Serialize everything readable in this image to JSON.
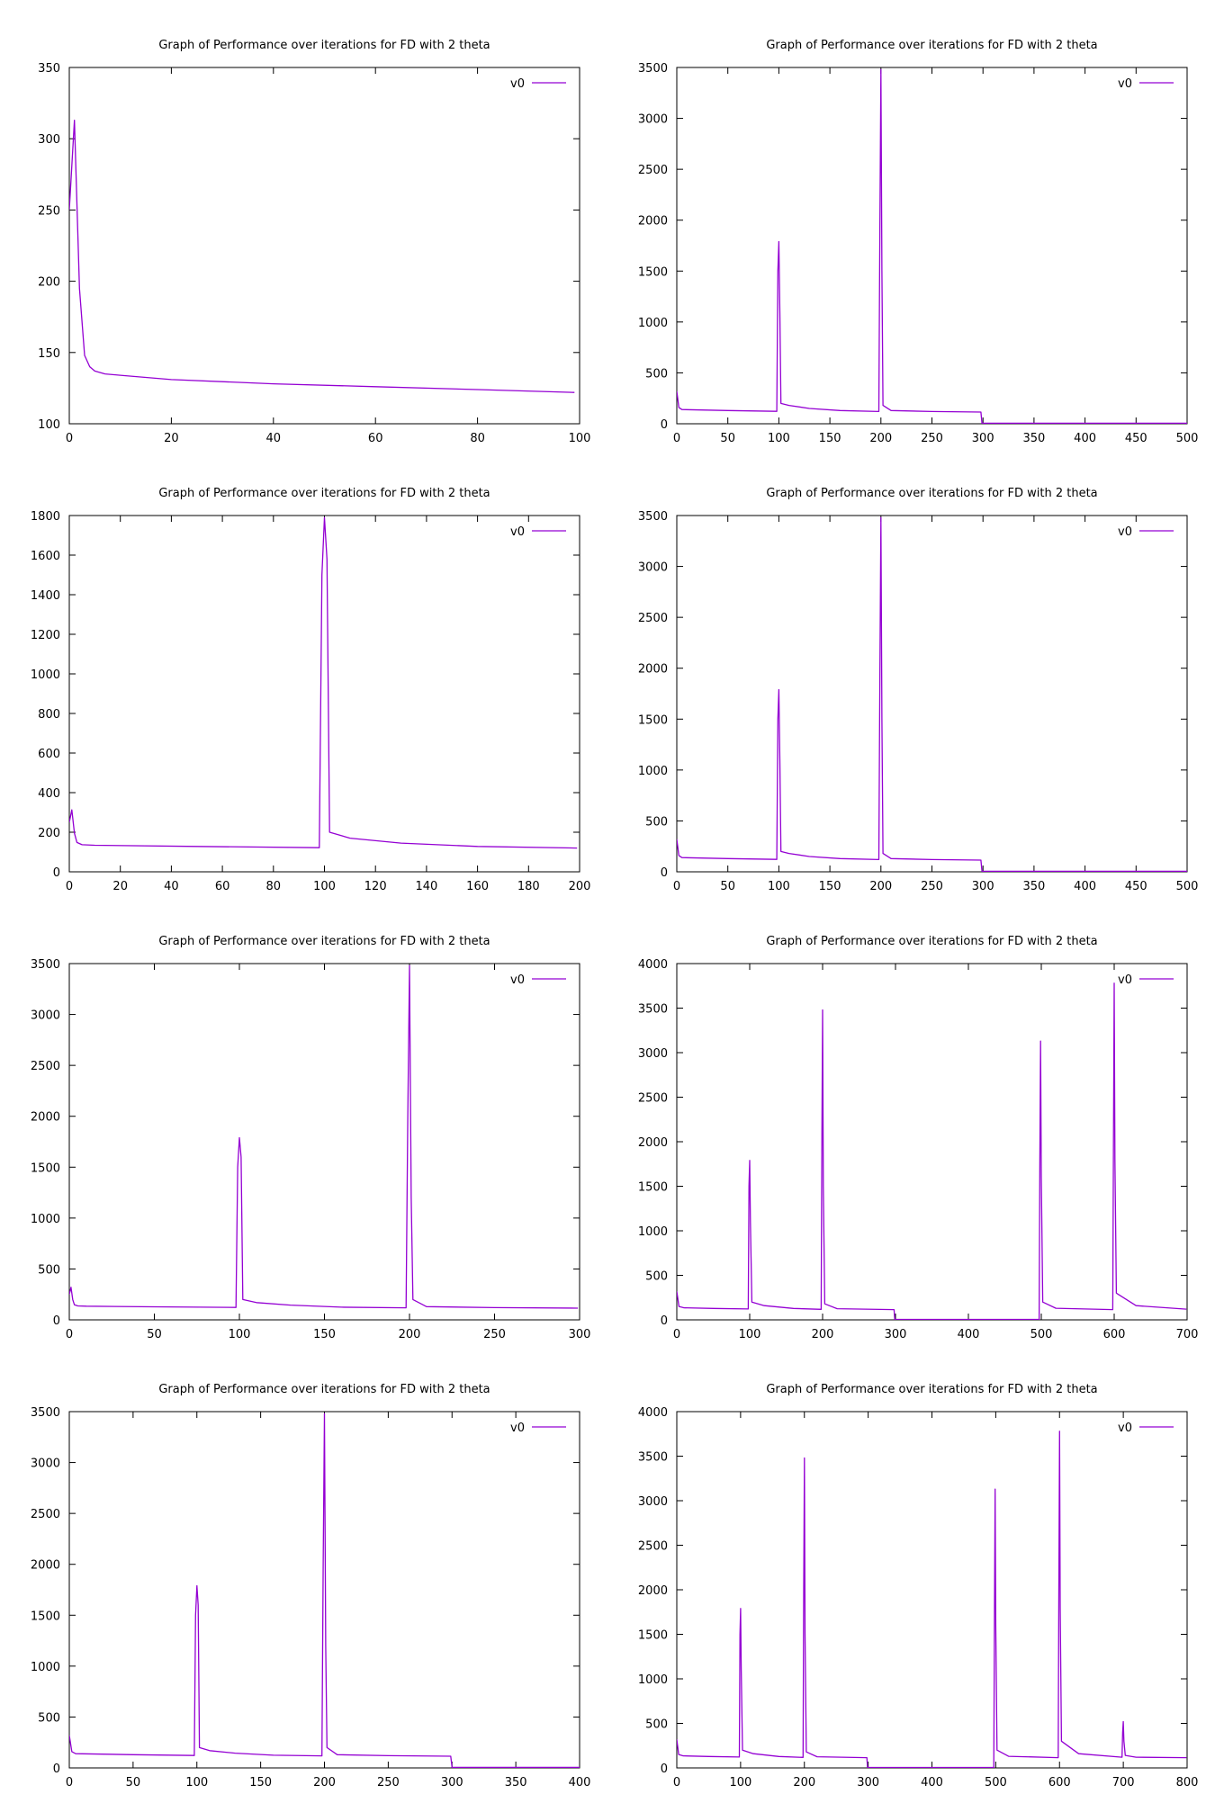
{
  "colors": {
    "series": "#9400d3",
    "axis": "#000000",
    "background": "#ffffff"
  },
  "chart_data": [
    {
      "type": "line",
      "title": "Graph of Performance over iterations for FD with 2 theta",
      "xlim": [
        0,
        100
      ],
      "ylim": [
        100,
        350
      ],
      "xticks": [
        0,
        20,
        40,
        60,
        80,
        100
      ],
      "yticks": [
        100,
        150,
        200,
        250,
        300,
        350
      ],
      "grid": false,
      "legend_position": "top-right",
      "series": [
        {
          "name": "v0",
          "color": "#9400d3",
          "points": [
            [
              0,
              250
            ],
            [
              1,
              313
            ],
            [
              2,
              195
            ],
            [
              3,
              148
            ],
            [
              4,
              140
            ],
            [
              5,
              137
            ],
            [
              7,
              135
            ],
            [
              10,
              134
            ],
            [
              20,
              131
            ],
            [
              40,
              128
            ],
            [
              60,
              126
            ],
            [
              80,
              124
            ],
            [
              99,
              122
            ]
          ]
        }
      ]
    },
    {
      "type": "line",
      "title": "Graph of Performance over iterations for FD with 2 theta",
      "xlim": [
        0,
        500
      ],
      "ylim": [
        0,
        3500
      ],
      "xticks": [
        0,
        50,
        100,
        150,
        200,
        250,
        300,
        350,
        400,
        450,
        500
      ],
      "yticks": [
        0,
        500,
        1000,
        1500,
        2000,
        2500,
        3000,
        3500
      ],
      "grid": false,
      "legend_position": "top-right",
      "series": [
        {
          "name": "v0",
          "color": "#9400d3",
          "points": [
            [
              0,
              320
            ],
            [
              2,
              160
            ],
            [
              5,
              140
            ],
            [
              50,
              130
            ],
            [
              98,
              122
            ],
            [
              99,
              1500
            ],
            [
              100,
              1790
            ],
            [
              101,
              1100
            ],
            [
              102,
              200
            ],
            [
              110,
              180
            ],
            [
              130,
              150
            ],
            [
              160,
              130
            ],
            [
              198,
              120
            ],
            [
              199,
              2000
            ],
            [
              200,
              3480
            ],
            [
              201,
              1500
            ],
            [
              202,
              180
            ],
            [
              210,
              130
            ],
            [
              250,
              120
            ],
            [
              298,
              115
            ],
            [
              299,
              5
            ],
            [
              500,
              5
            ]
          ]
        }
      ]
    },
    {
      "type": "line",
      "title": "Graph of Performance over iterations for FD with 2 theta",
      "xlim": [
        0,
        200
      ],
      "ylim": [
        0,
        1800
      ],
      "xticks": [
        0,
        20,
        40,
        60,
        80,
        100,
        120,
        140,
        160,
        180,
        200
      ],
      "yticks": [
        0,
        200,
        400,
        600,
        800,
        1000,
        1200,
        1400,
        1600,
        1800
      ],
      "grid": false,
      "legend_position": "top-right",
      "series": [
        {
          "name": "v0",
          "color": "#9400d3",
          "points": [
            [
              0,
              250
            ],
            [
              1,
              313
            ],
            [
              2,
              195
            ],
            [
              3,
              148
            ],
            [
              5,
              137
            ],
            [
              10,
              134
            ],
            [
              50,
              128
            ],
            [
              98,
              122
            ],
            [
              99,
              1500
            ],
            [
              100,
              1790
            ],
            [
              101,
              1580
            ],
            [
              102,
              200
            ],
            [
              110,
              170
            ],
            [
              130,
              145
            ],
            [
              160,
              128
            ],
            [
              199,
              120
            ]
          ]
        }
      ]
    },
    {
      "type": "line",
      "title": "Graph of Performance over iterations for FD with 2 theta",
      "xlim": [
        0,
        500
      ],
      "ylim": [
        0,
        3500
      ],
      "xticks": [
        0,
        50,
        100,
        150,
        200,
        250,
        300,
        350,
        400,
        450,
        500
      ],
      "yticks": [
        0,
        500,
        1000,
        1500,
        2000,
        2500,
        3000,
        3500
      ],
      "grid": false,
      "legend_position": "top-right",
      "series": [
        {
          "name": "v0",
          "color": "#9400d3",
          "points": [
            [
              0,
              320
            ],
            [
              2,
              160
            ],
            [
              5,
              140
            ],
            [
              50,
              130
            ],
            [
              98,
              122
            ],
            [
              99,
              1500
            ],
            [
              100,
              1790
            ],
            [
              101,
              1100
            ],
            [
              102,
              200
            ],
            [
              110,
              180
            ],
            [
              130,
              150
            ],
            [
              160,
              130
            ],
            [
              198,
              120
            ],
            [
              199,
              2000
            ],
            [
              200,
              3480
            ],
            [
              201,
              1500
            ],
            [
              202,
              180
            ],
            [
              210,
              130
            ],
            [
              250,
              120
            ],
            [
              298,
              115
            ],
            [
              299,
              5
            ],
            [
              500,
              5
            ]
          ]
        }
      ]
    },
    {
      "type": "line",
      "title": "Graph of Performance over iterations for FD with 2 theta",
      "xlim": [
        0,
        300
      ],
      "ylim": [
        0,
        3500
      ],
      "xticks": [
        0,
        50,
        100,
        150,
        200,
        250,
        300
      ],
      "yticks": [
        0,
        500,
        1000,
        1500,
        2000,
        2500,
        3000,
        3500
      ],
      "grid": false,
      "legend_position": "top-right",
      "series": [
        {
          "name": "v0",
          "color": "#9400d3",
          "points": [
            [
              0,
              250
            ],
            [
              1,
              320
            ],
            [
              2,
              200
            ],
            [
              3,
              148
            ],
            [
              5,
              137
            ],
            [
              10,
              134
            ],
            [
              50,
              128
            ],
            [
              98,
              122
            ],
            [
              99,
              1500
            ],
            [
              100,
              1790
            ],
            [
              101,
              1600
            ],
            [
              102,
              200
            ],
            [
              110,
              170
            ],
            [
              130,
              145
            ],
            [
              160,
              125
            ],
            [
              198,
              118
            ],
            [
              199,
              2000
            ],
            [
              200,
              3480
            ],
            [
              201,
              1200
            ],
            [
              202,
              200
            ],
            [
              210,
              130
            ],
            [
              250,
              120
            ],
            [
              299,
              115
            ]
          ]
        }
      ]
    },
    {
      "type": "line",
      "title": "Graph of Performance over iterations for FD with 2 theta",
      "xlim": [
        0,
        700
      ],
      "ylim": [
        0,
        4000
      ],
      "xticks": [
        0,
        100,
        200,
        300,
        400,
        500,
        600,
        700
      ],
      "yticks": [
        0,
        500,
        1000,
        1500,
        2000,
        2500,
        3000,
        3500,
        4000
      ],
      "grid": false,
      "legend_position": "top-right",
      "series": [
        {
          "name": "v0",
          "color": "#9400d3",
          "points": [
            [
              0,
              320
            ],
            [
              3,
              150
            ],
            [
              10,
              135
            ],
            [
              50,
              128
            ],
            [
              98,
              122
            ],
            [
              99,
              1500
            ],
            [
              100,
              1790
            ],
            [
              101,
              1100
            ],
            [
              103,
              200
            ],
            [
              120,
              160
            ],
            [
              160,
              128
            ],
            [
              198,
              118
            ],
            [
              199,
              2000
            ],
            [
              200,
              3480
            ],
            [
              201,
              1500
            ],
            [
              203,
              180
            ],
            [
              220,
              125
            ],
            [
              298,
              115
            ],
            [
              299,
              5
            ],
            [
              497,
              5
            ],
            [
              498,
              1800
            ],
            [
              499,
              3130
            ],
            [
              500,
              1600
            ],
            [
              502,
              200
            ],
            [
              520,
              130
            ],
            [
              598,
              115
            ],
            [
              599,
              2000
            ],
            [
              600,
              3780
            ],
            [
              601,
              1800
            ],
            [
              603,
              300
            ],
            [
              630,
              160
            ],
            [
              699,
              120
            ]
          ]
        }
      ]
    },
    {
      "type": "line",
      "title": "Graph of Performance over iterations for FD with 2 theta",
      "xlim": [
        0,
        400
      ],
      "ylim": [
        0,
        3500
      ],
      "xticks": [
        0,
        50,
        100,
        150,
        200,
        250,
        300,
        350,
        400
      ],
      "yticks": [
        0,
        500,
        1000,
        1500,
        2000,
        2500,
        3000,
        3500
      ],
      "grid": false,
      "legend_position": "top-right",
      "series": [
        {
          "name": "v0",
          "color": "#9400d3",
          "points": [
            [
              0,
              320
            ],
            [
              2,
              160
            ],
            [
              5,
              140
            ],
            [
              50,
              130
            ],
            [
              98,
              122
            ],
            [
              99,
              1500
            ],
            [
              100,
              1790
            ],
            [
              101,
              1600
            ],
            [
              102,
              200
            ],
            [
              110,
              170
            ],
            [
              130,
              145
            ],
            [
              160,
              125
            ],
            [
              198,
              118
            ],
            [
              199,
              2000
            ],
            [
              200,
              3480
            ],
            [
              201,
              1200
            ],
            [
              202,
              200
            ],
            [
              210,
              130
            ],
            [
              250,
              120
            ],
            [
              299,
              115
            ],
            [
              300,
              5
            ],
            [
              400,
              5
            ]
          ]
        }
      ]
    },
    {
      "type": "line",
      "title": "Graph of Performance over iterations for FD with 2 theta",
      "xlim": [
        0,
        800
      ],
      "ylim": [
        0,
        4000
      ],
      "xticks": [
        0,
        100,
        200,
        300,
        400,
        500,
        600,
        700,
        800
      ],
      "yticks": [
        0,
        500,
        1000,
        1500,
        2000,
        2500,
        3000,
        3500,
        4000
      ],
      "grid": false,
      "legend_position": "top-right",
      "series": [
        {
          "name": "v0",
          "color": "#9400d3",
          "points": [
            [
              0,
              320
            ],
            [
              3,
              150
            ],
            [
              10,
              135
            ],
            [
              50,
              128
            ],
            [
              98,
              122
            ],
            [
              99,
              1500
            ],
            [
              100,
              1790
            ],
            [
              101,
              1100
            ],
            [
              103,
              200
            ],
            [
              120,
              160
            ],
            [
              160,
              128
            ],
            [
              198,
              118
            ],
            [
              199,
              2000
            ],
            [
              200,
              3480
            ],
            [
              201,
              1500
            ],
            [
              203,
              180
            ],
            [
              220,
              125
            ],
            [
              298,
              115
            ],
            [
              299,
              5
            ],
            [
              497,
              5
            ],
            [
              498,
              1800
            ],
            [
              499,
              3130
            ],
            [
              500,
              1600
            ],
            [
              502,
              200
            ],
            [
              520,
              130
            ],
            [
              598,
              115
            ],
            [
              599,
              2000
            ],
            [
              600,
              3780
            ],
            [
              601,
              1800
            ],
            [
              603,
              300
            ],
            [
              630,
              160
            ],
            [
              698,
              120
            ],
            [
              699,
              400
            ],
            [
              700,
              520
            ],
            [
              701,
              300
            ],
            [
              703,
              140
            ],
            [
              720,
              120
            ],
            [
              799,
              115
            ]
          ]
        }
      ]
    }
  ]
}
